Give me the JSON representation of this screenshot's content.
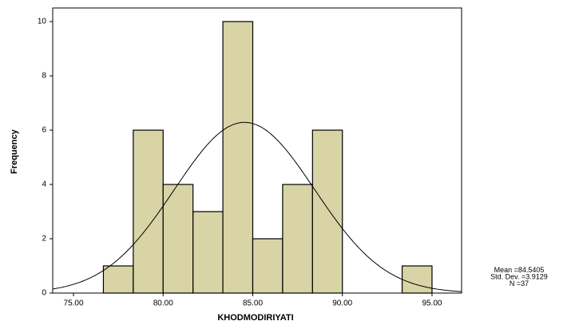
{
  "chart_data": {
    "type": "histogram",
    "x_label": "KHODMODIRIYATI",
    "y_label": "Frequency",
    "bins": [
      76.6667,
      78.3333,
      80,
      81.6667,
      83.3333,
      85,
      86.6667,
      88.3333,
      90,
      91.6667,
      93.3333,
      95
    ],
    "values": [
      1,
      6,
      4,
      3,
      10,
      2,
      4,
      6,
      0,
      0,
      1
    ],
    "color": "#d8d4a6",
    "edge_color": "#000000",
    "xlim": [
      73.84,
      96.65
    ],
    "ylim": [
      0,
      10.5
    ],
    "xticks": [
      {
        "value": 75,
        "label": "75.00"
      },
      {
        "value": 80,
        "label": "80.00"
      },
      {
        "value": 85,
        "label": "85.00"
      },
      {
        "value": 90,
        "label": "90.00"
      },
      {
        "value": 95,
        "label": "95.00"
      }
    ],
    "yticks": [
      0,
      2,
      4,
      6,
      8,
      10
    ],
    "normal_curve": true,
    "stats": [
      {
        "label": "Mean =",
        "value": 84.5405
      },
      {
        "label": "Std. Dev. =",
        "value": 3.9129
      },
      {
        "label": "N =",
        "value": 37
      }
    ]
  }
}
